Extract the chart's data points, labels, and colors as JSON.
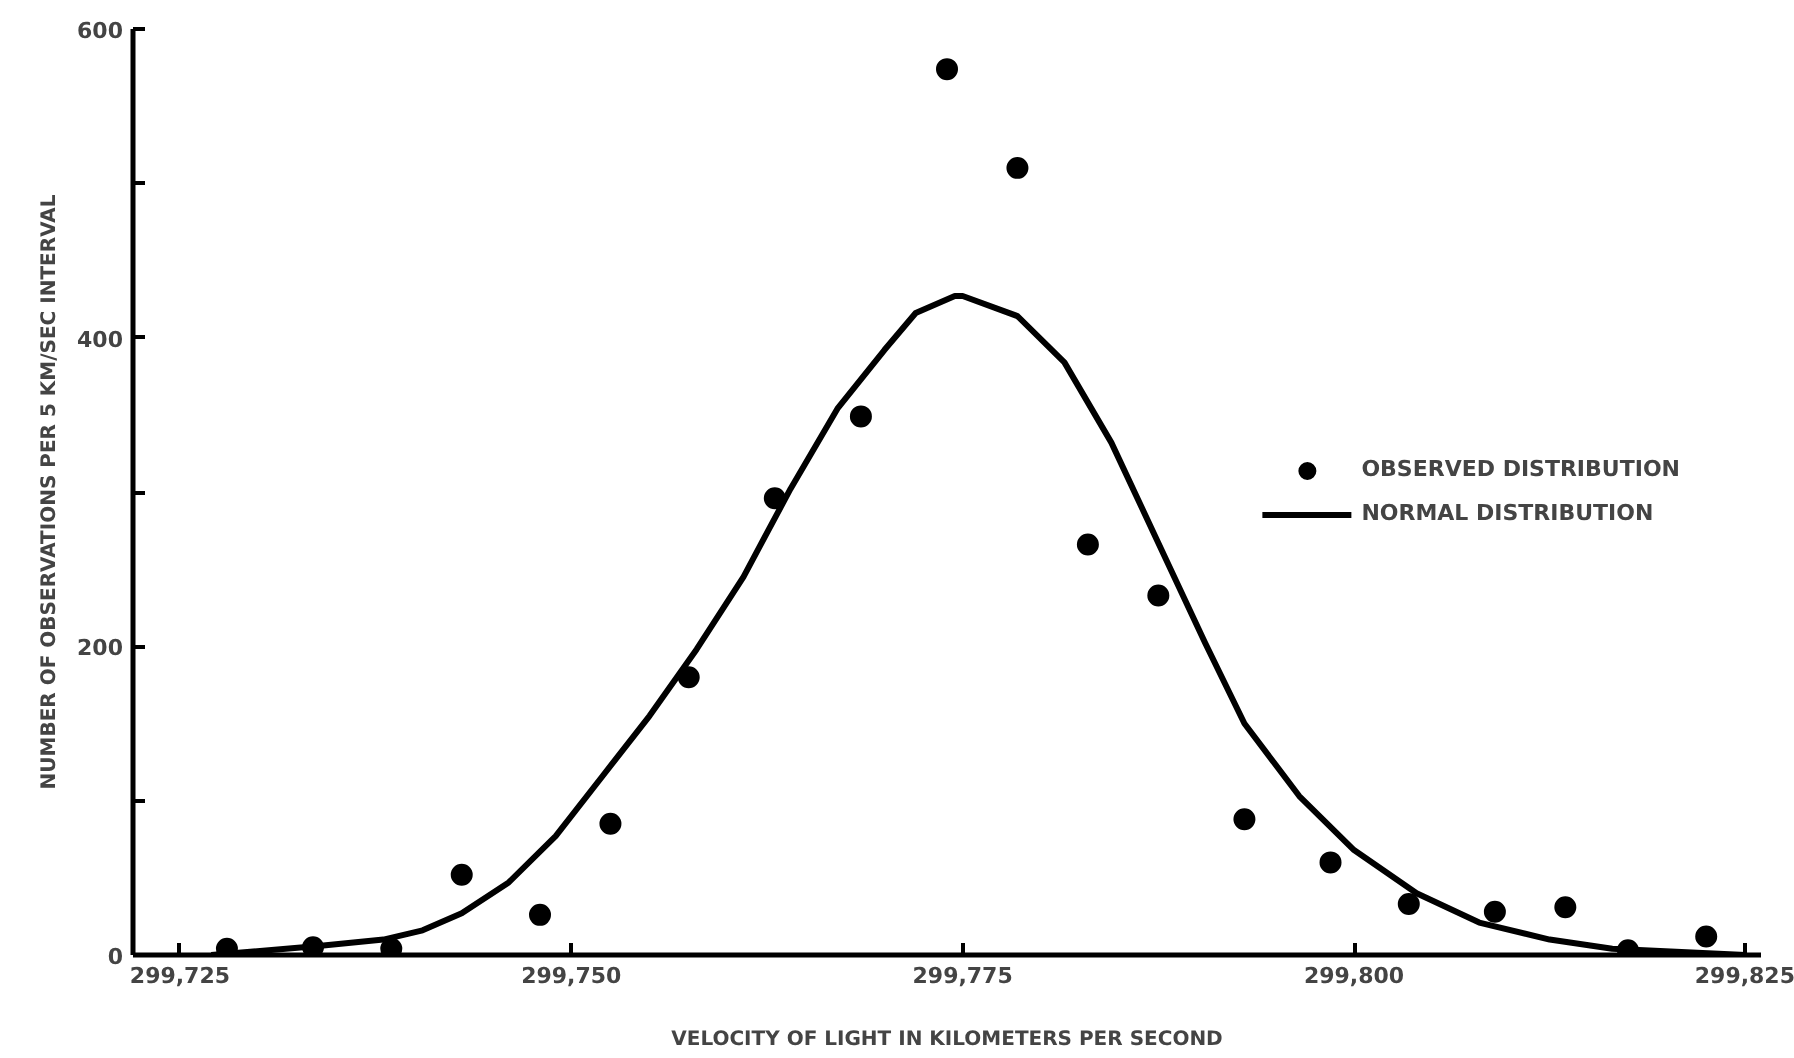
{
  "chart_data": {
    "type": "scatter",
    "xlabel": "VELOCITY OF LIGHT IN KILOMETERS PER SECOND",
    "ylabel": "NUMBER OF OBSERVATIONS PER 5 KM/SEC INTERVAL",
    "xlim": [
      299722,
      299826
    ],
    "ylim": [
      0,
      600
    ],
    "xticks": [
      {
        "value": 299725,
        "label": "299,725"
      },
      {
        "value": 299750,
        "label": "299,750"
      },
      {
        "value": 299775,
        "label": "299,775"
      },
      {
        "value": 299800,
        "label": "299,800"
      },
      {
        "value": 299825,
        "label": "299,825"
      }
    ],
    "yticks": [
      0,
      {
        "value": 100,
        "label": null
      },
      200,
      {
        "value": 300,
        "label": null
      },
      400,
      {
        "value": 500,
        "label": null
      },
      600
    ],
    "grid": false,
    "legend": "right",
    "series": [
      {
        "name": "OBSERVED DISTRIBUTION",
        "marker": "circle",
        "color": "#000000",
        "x": [
          299728,
          299733.5,
          299738.5,
          299743,
          299748,
          299752.5,
          299757.5,
          299763,
          299768.5,
          299774,
          299778.5,
          299783,
          299787.5,
          299793,
          299798.5,
          299803.5,
          299809,
          299813.5,
          299817.5,
          299822.5
        ],
        "values": [
          4,
          5,
          4,
          52,
          26,
          85,
          180,
          296,
          349,
          574,
          510,
          266,
          233,
          88,
          60,
          33,
          28,
          31,
          3,
          12
        ]
      },
      {
        "name": "NORMAL DISTRIBUTION",
        "type": "line",
        "line_style": "solid",
        "color": "#000000",
        "x": [
          299727,
          299734,
          299738,
          299740.5,
          299743,
          299746,
          299749,
          299752,
          299755,
          299758,
          299761,
          299764,
          299767,
          299770,
          299772,
          299774.5,
          299775,
          299778.5,
          299781.5,
          299784.5,
          299787.5,
          299790.5,
          299793,
          299796.5,
          299800,
          299804,
          299808,
          299812.5,
          299816.5,
          299825
        ],
        "values": [
          0,
          6,
          10,
          16,
          27,
          47,
          77,
          116,
          155,
          198,
          245,
          302,
          354,
          392,
          416,
          427,
          427,
          414,
          384,
          332,
          267,
          202,
          150,
          103,
          68,
          40,
          21,
          10,
          4,
          0
        ]
      }
    ]
  }
}
